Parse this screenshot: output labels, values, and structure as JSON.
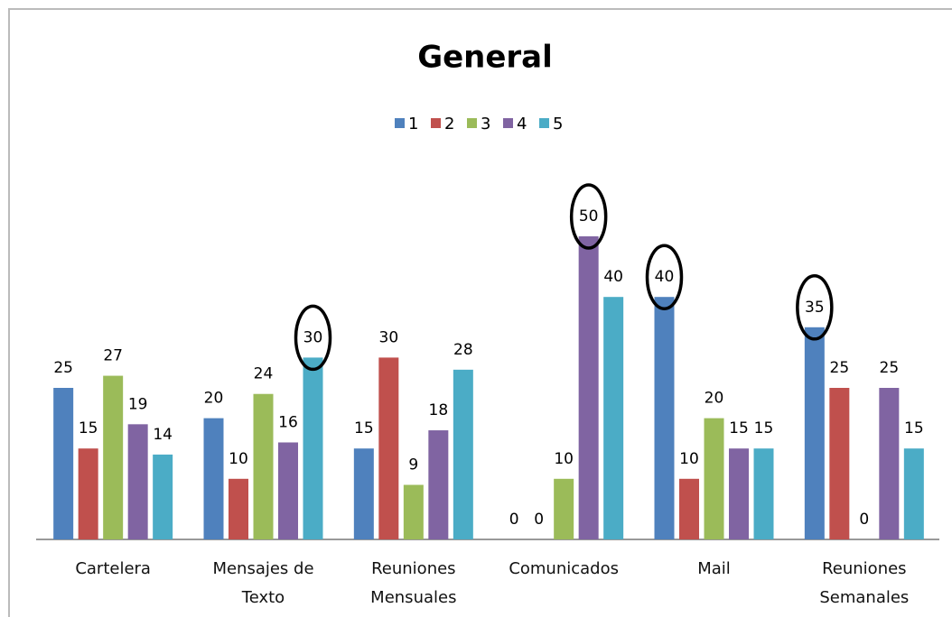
{
  "chart_data": {
    "type": "bar",
    "title": "General",
    "categories": [
      "Cartelera",
      "Mensajes de Texto",
      "Reuniones Mensuales",
      "Comunicados",
      "Mail",
      "Reuniones Semanales"
    ],
    "series": [
      {
        "name": "1",
        "color": "#4f81bd",
        "values": [
          25,
          20,
          15,
          0,
          40,
          35
        ]
      },
      {
        "name": "2",
        "color": "#c0504d",
        "values": [
          15,
          10,
          30,
          0,
          10,
          25
        ]
      },
      {
        "name": "3",
        "color": "#9bbb59",
        "values": [
          27,
          24,
          9,
          10,
          20,
          0
        ]
      },
      {
        "name": "4",
        "color": "#8064a2",
        "values": [
          19,
          16,
          18,
          50,
          15,
          25
        ]
      },
      {
        "name": "5",
        "color": "#4bacc6",
        "values": [
          14,
          30,
          28,
          40,
          15,
          15
        ]
      }
    ],
    "ylim": [
      0,
      50
    ],
    "legend": "top"
  }
}
